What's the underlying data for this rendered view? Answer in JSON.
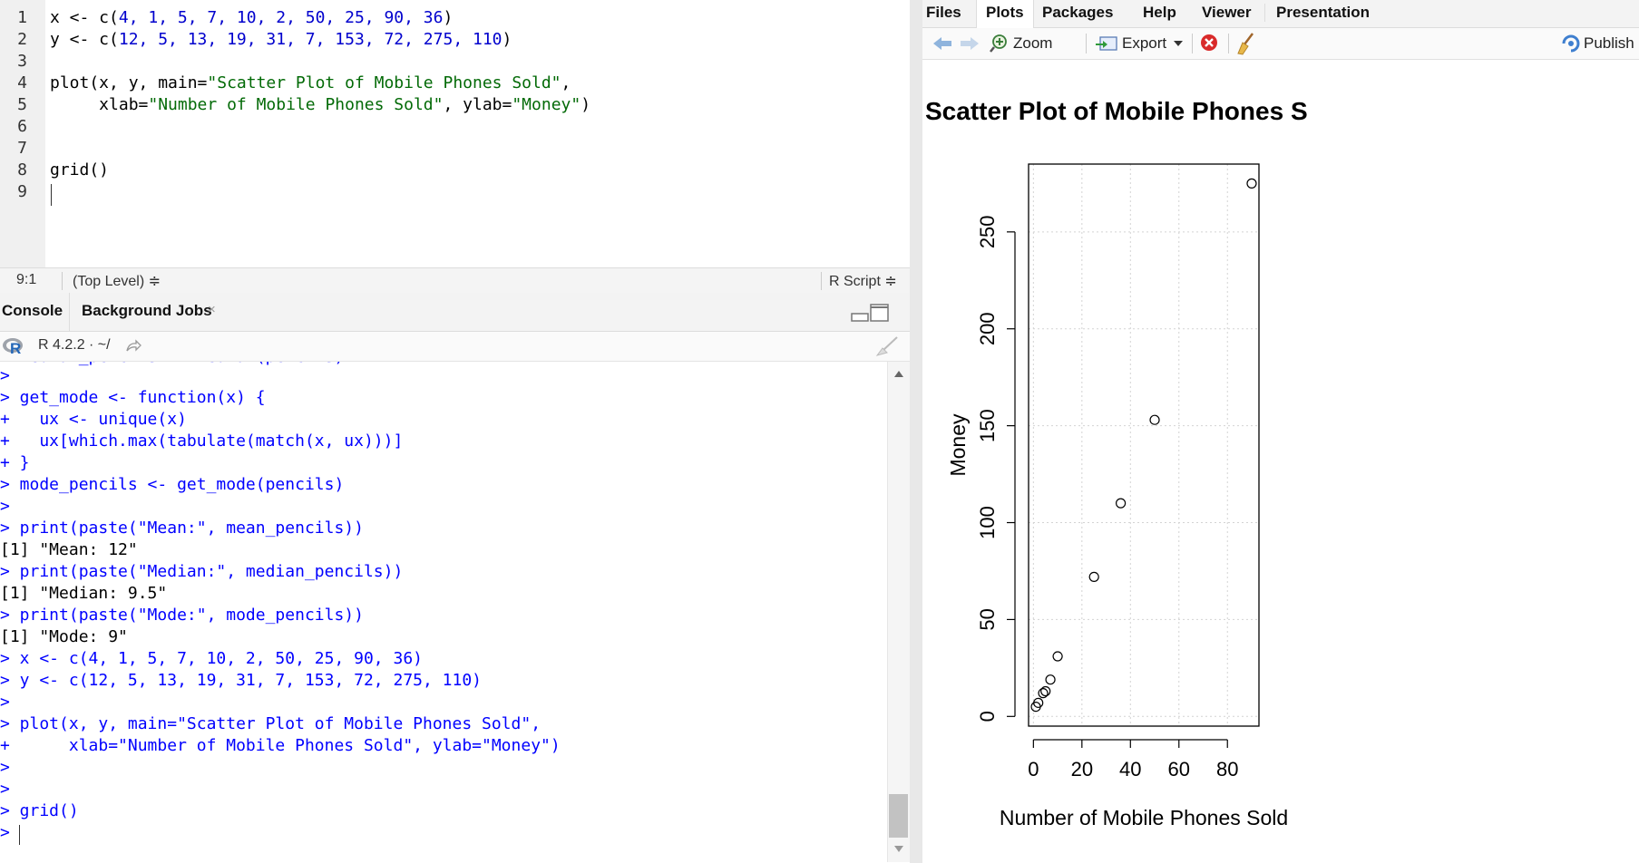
{
  "editor": {
    "line_numbers": [
      "1",
      "2",
      "3",
      "4",
      "5",
      "6",
      "7",
      "8",
      "9"
    ],
    "lines": [
      {
        "segments": [
          {
            "t": "x <- c(",
            "c": ""
          },
          {
            "t": "4, 1, 5, 7, 10, 2, 50, 25, 90, 36",
            "c": "num"
          },
          {
            "t": ")",
            "c": ""
          }
        ]
      },
      {
        "segments": [
          {
            "t": "y <- c(",
            "c": ""
          },
          {
            "t": "12, 5, 13, 19, 31, 7, 153, 72, 275, 110",
            "c": "num"
          },
          {
            "t": ")",
            "c": ""
          }
        ]
      },
      {
        "segments": []
      },
      {
        "segments": [
          {
            "t": "plot(x, y, main=",
            "c": ""
          },
          {
            "t": "\"Scatter Plot of Mobile Phones Sold\"",
            "c": "s"
          },
          {
            "t": ",",
            "c": ""
          }
        ]
      },
      {
        "segments": [
          {
            "t": "     xlab=",
            "c": ""
          },
          {
            "t": "\"Number of Mobile Phones Sold\"",
            "c": "s"
          },
          {
            "t": ", ylab=",
            "c": ""
          },
          {
            "t": "\"Money\"",
            "c": "s"
          },
          {
            "t": ")",
            "c": ""
          }
        ]
      },
      {
        "segments": []
      },
      {
        "segments": []
      },
      {
        "segments": [
          {
            "t": "grid()",
            "c": ""
          }
        ]
      },
      {
        "segments": []
      }
    ],
    "status_position": "9:1",
    "status_scope": "(Top Level) ≑",
    "status_type": "R Script ≑"
  },
  "console_tabs": {
    "console": "Console",
    "background_jobs": "Background Jobs"
  },
  "console": {
    "r_version": "R 4.2.2 · ~/",
    "lines": [
      {
        "t": "> get_mode <- function(x) {",
        "c": "blue"
      },
      {
        "t": "+   ux <- unique(x)",
        "c": "blue"
      },
      {
        "t": "+   ux[which.max(tabulate(match(x, ux)))]",
        "c": "blue"
      },
      {
        "t": "+ }",
        "c": "blue"
      },
      {
        "t": "> mode_pencils <- get_mode(pencils)",
        "c": "blue"
      },
      {
        "t": ">",
        "c": "blue"
      },
      {
        "t": "> print(paste(\"Mean:\", mean_pencils))",
        "c": "blue"
      },
      {
        "t": "[1] \"Mean: 12\"",
        "c": "blk"
      },
      {
        "t": "> print(paste(\"Median:\", median_pencils))",
        "c": "blue"
      },
      {
        "t": "[1] \"Median: 9.5\"",
        "c": "blk"
      },
      {
        "t": "> print(paste(\"Mode:\", mode_pencils))",
        "c": "blue"
      },
      {
        "t": "[1] \"Mode: 9\"",
        "c": "blk"
      },
      {
        "t": "> x <- c(4, 1, 5, 7, 10, 2, 50, 25, 90, 36)",
        "c": "blue"
      },
      {
        "t": "> y <- c(12, 5, 13, 19, 31, 7, 153, 72, 275, 110)",
        "c": "blue"
      },
      {
        "t": ">",
        "c": "blue"
      },
      {
        "t": "> plot(x, y, main=\"Scatter Plot of Mobile Phones Sold\",",
        "c": "blue"
      },
      {
        "t": "+      xlab=\"Number of Mobile Phones Sold\", ylab=\"Money\")",
        "c": "blue"
      },
      {
        "t": ">",
        "c": "blue"
      },
      {
        "t": ">",
        "c": "blue"
      },
      {
        "t": "> grid()",
        "c": "blue"
      },
      {
        "t": ">",
        "c": "blue"
      }
    ]
  },
  "right_tabs": [
    "Files",
    "Plots",
    "Packages",
    "Help",
    "Viewer",
    "Presentation"
  ],
  "plot_toolbar": {
    "zoom": "Zoom",
    "export": "Export",
    "publish": "Publish"
  },
  "chart_data": {
    "type": "scatter",
    "title": "Scatter Plot of Mobile Phones S",
    "xlabel": "Number of Mobile Phones Sold",
    "ylabel": "Money",
    "x": [
      4,
      1,
      5,
      7,
      10,
      2,
      50,
      25,
      90,
      36
    ],
    "y": [
      12,
      5,
      13,
      19,
      31,
      7,
      153,
      72,
      275,
      110
    ],
    "xlim": [
      -2,
      93
    ],
    "ylim": [
      -5,
      285
    ],
    "xticks": [
      0,
      20,
      40,
      60,
      80
    ],
    "yticks": [
      0,
      50,
      100,
      150,
      200,
      250
    ],
    "grid": true
  }
}
